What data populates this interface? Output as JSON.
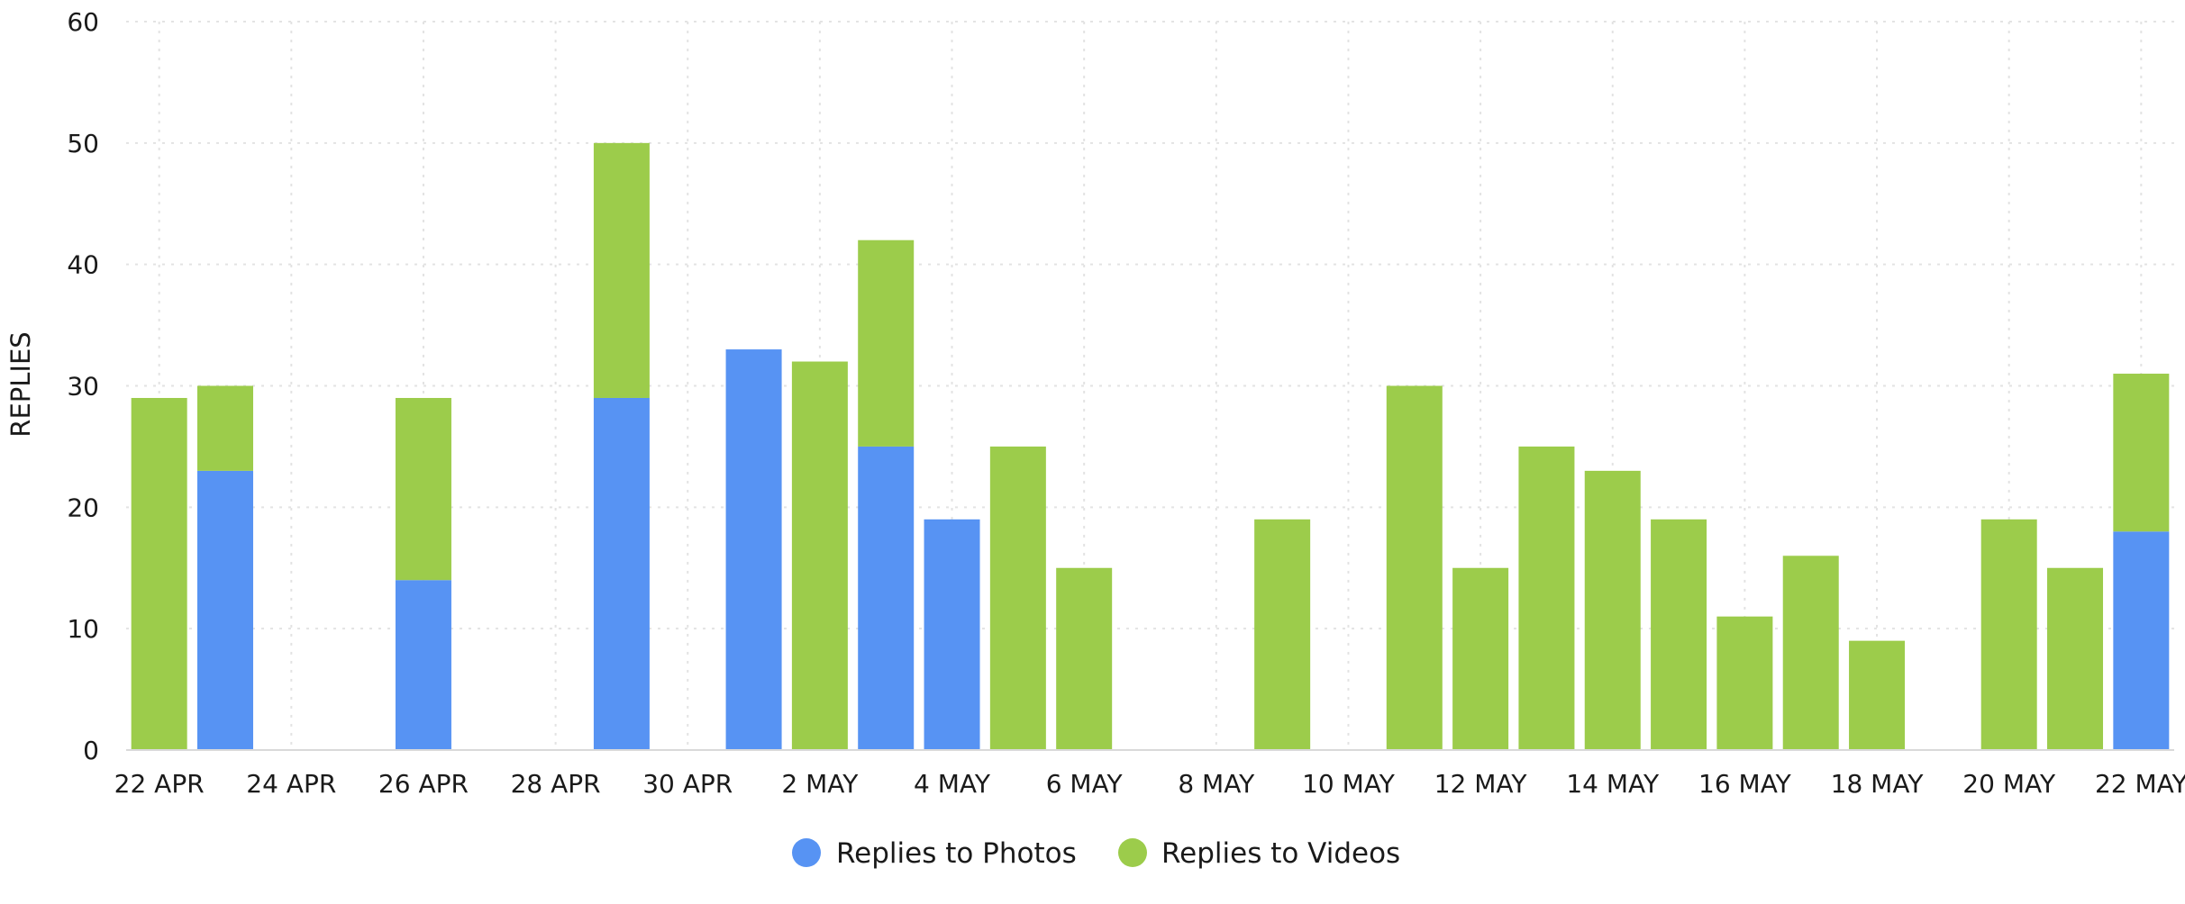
{
  "chart_data": {
    "type": "bar",
    "stacked": true,
    "ylabel": "REPLIES",
    "ylim": [
      0,
      60
    ],
    "yticks": [
      0,
      10,
      20,
      30,
      40,
      50,
      60
    ],
    "grid": true,
    "legend_position": "bottom-center",
    "x_tick_labels": [
      "22 APR",
      "24 APR",
      "26 APR",
      "28 APR",
      "30 APR",
      "2 MAY",
      "4 MAY",
      "6 MAY",
      "8 MAY",
      "10 MAY",
      "12 MAY",
      "14 MAY",
      "16 MAY",
      "18 MAY",
      "20 MAY",
      "22 MAY"
    ],
    "categories": [
      "22 APR",
      "23 APR",
      "24 APR",
      "25 APR",
      "26 APR",
      "27 APR",
      "28 APR",
      "29 APR",
      "30 APR",
      "1 MAY",
      "2 MAY",
      "3 MAY",
      "4 MAY",
      "5 MAY",
      "6 MAY",
      "7 MAY",
      "8 MAY",
      "9 MAY",
      "10 MAY",
      "11 MAY",
      "12 MAY",
      "13 MAY",
      "14 MAY",
      "15 MAY",
      "16 MAY",
      "17 MAY",
      "18 MAY",
      "19 MAY",
      "20 MAY",
      "21 MAY",
      "22 MAY"
    ],
    "series": [
      {
        "name": "Replies to Photos",
        "color": "#5793f3",
        "values": [
          0,
          23,
          0,
          0,
          14,
          0,
          0,
          29,
          0,
          33,
          0,
          25,
          19,
          0,
          0,
          0,
          0,
          0,
          0,
          0,
          0,
          0,
          0,
          0,
          0,
          0,
          0,
          0,
          0,
          0,
          18
        ]
      },
      {
        "name": "Replies to Videos",
        "color": "#9ccc4b",
        "values": [
          29,
          7,
          0,
          0,
          15,
          0,
          0,
          21,
          0,
          0,
          32,
          17,
          0,
          25,
          15,
          0,
          0,
          19,
          0,
          30,
          15,
          25,
          23,
          19,
          11,
          16,
          9,
          0,
          19,
          15,
          13
        ]
      }
    ]
  }
}
